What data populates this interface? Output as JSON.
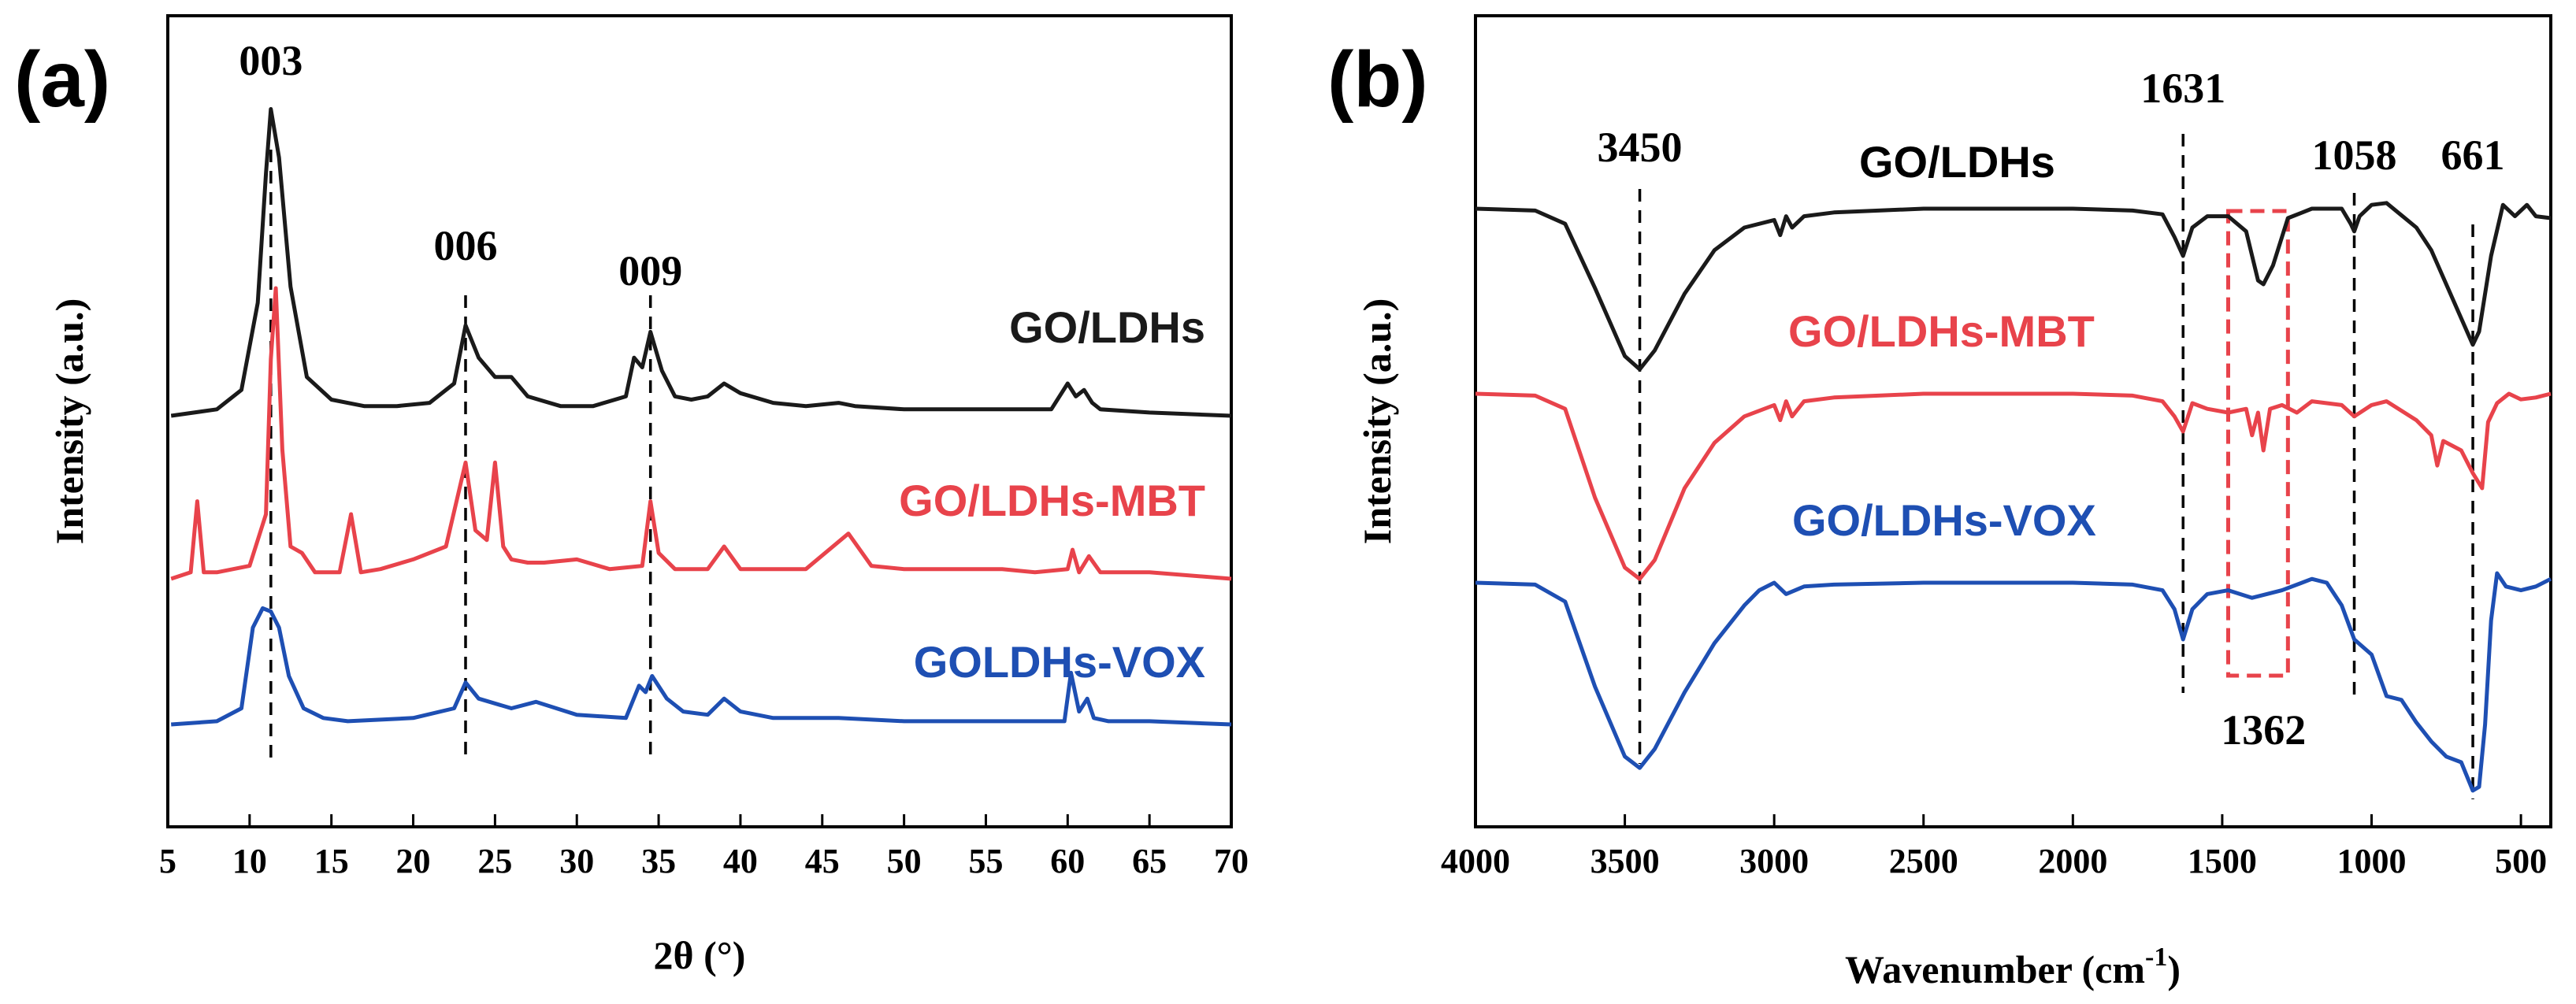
{
  "chart_data": [
    {
      "type": "line",
      "panel": "(a)",
      "xlabel": "2θ (°)",
      "ylabel": "Intensity (a.u.)",
      "xlim": [
        5,
        70
      ],
      "xticks": [
        5,
        10,
        15,
        20,
        25,
        30,
        35,
        40,
        45,
        50,
        55,
        60,
        65,
        70
      ],
      "annotations": [
        {
          "text": "003",
          "x": 11.3
        },
        {
          "text": "006",
          "x": 23.2
        },
        {
          "text": "009",
          "x": 34.5
        }
      ],
      "series": [
        {
          "name": "GO/LDHs",
          "label": "GO/LDHs",
          "color": "#1a1a1a",
          "baseline": 0.0,
          "x": [
            5.2,
            8,
            9.5,
            10.5,
            11.0,
            11.3,
            11.8,
            12.5,
            13.5,
            15,
            17,
            19,
            21,
            22.5,
            23.2,
            24,
            25,
            26,
            27,
            29,
            31,
            33,
            33.5,
            34,
            34.5,
            35.2,
            36,
            37,
            38,
            39,
            40,
            42,
            44,
            46,
            47,
            50,
            55,
            59,
            60,
            60.5,
            61,
            61.5,
            62,
            65,
            70
          ],
          "y": [
            0,
            0.02,
            0.08,
            0.35,
            0.75,
            0.95,
            0.8,
            0.4,
            0.12,
            0.05,
            0.03,
            0.03,
            0.04,
            0.1,
            0.28,
            0.18,
            0.12,
            0.12,
            0.06,
            0.03,
            0.03,
            0.06,
            0.18,
            0.15,
            0.26,
            0.14,
            0.06,
            0.05,
            0.06,
            0.1,
            0.07,
            0.04,
            0.03,
            0.04,
            0.03,
            0.02,
            0.02,
            0.02,
            0.1,
            0.06,
            0.08,
            0.04,
            0.02,
            0.01,
            0
          ]
        },
        {
          "name": "GO/LDHs-MBT",
          "label": "GO/LDHs-MBT",
          "color": "#e8434b",
          "baseline": 0.0,
          "x": [
            5.2,
            6.4,
            6.8,
            7.2,
            8,
            10,
            11,
            11.3,
            11.6,
            12,
            12.5,
            13.2,
            14,
            15.5,
            16.2,
            16.8,
            18,
            20,
            22,
            23.2,
            23.8,
            24.5,
            25,
            25.5,
            26,
            27,
            28,
            30,
            32,
            34,
            34.5,
            35,
            36,
            38,
            39,
            40,
            44,
            46.6,
            48,
            50,
            53,
            56,
            58,
            60,
            60.3,
            60.7,
            61.3,
            62,
            65,
            70
          ],
          "y": [
            0,
            0.02,
            0.24,
            0.02,
            0.02,
            0.04,
            0.2,
            0.68,
            0.9,
            0.4,
            0.1,
            0.08,
            0.02,
            0.02,
            0.2,
            0.02,
            0.03,
            0.06,
            0.1,
            0.36,
            0.15,
            0.12,
            0.36,
            0.1,
            0.06,
            0.05,
            0.05,
            0.06,
            0.03,
            0.04,
            0.24,
            0.08,
            0.03,
            0.03,
            0.1,
            0.03,
            0.03,
            0.14,
            0.04,
            0.03,
            0.03,
            0.03,
            0.02,
            0.03,
            0.09,
            0.02,
            0.07,
            0.02,
            0.02,
            0
          ]
        },
        {
          "name": "GOLDHs-VOX",
          "label": "GOLDHs-VOX",
          "color": "#1e4fb3",
          "baseline": 0.0,
          "x": [
            5.2,
            8,
            9.5,
            10.2,
            10.8,
            11.3,
            11.8,
            12.4,
            13.3,
            14.5,
            16,
            20,
            22.5,
            23.2,
            24,
            26,
            27.5,
            30,
            33,
            33.8,
            34.2,
            34.6,
            35.5,
            36.5,
            38,
            39,
            40,
            42,
            46,
            50,
            55,
            59.8,
            60.2,
            60.7,
            61.2,
            61.6,
            62.5,
            65,
            70
          ],
          "y": [
            0,
            0.01,
            0.05,
            0.3,
            0.36,
            0.35,
            0.3,
            0.15,
            0.05,
            0.02,
            0.01,
            0.02,
            0.05,
            0.13,
            0.08,
            0.05,
            0.07,
            0.03,
            0.02,
            0.12,
            0.1,
            0.15,
            0.08,
            0.04,
            0.03,
            0.08,
            0.04,
            0.02,
            0.02,
            0.01,
            0.01,
            0.01,
            0.16,
            0.04,
            0.08,
            0.02,
            0.01,
            0.01,
            0
          ]
        }
      ]
    },
    {
      "type": "line",
      "panel": "(b)",
      "xlabel": "Wavenumber (cm",
      "xlabel_sup": "-1",
      "xlabel_end": ")",
      "ylabel": "Intensity (a.u.)",
      "xlim": [
        4000,
        400
      ],
      "xticks": [
        4000,
        3500,
        3000,
        2500,
        2000,
        1500,
        1000,
        500
      ],
      "annotations": [
        {
          "text": "3450",
          "x": 3450
        },
        {
          "text": "1631",
          "x": 1631
        },
        {
          "text": "1058",
          "x": 1058
        },
        {
          "text": "661",
          "x": 661
        },
        {
          "text": "1362",
          "x": 1362
        }
      ],
      "highlight_box": {
        "x_from": 1480,
        "x_to": 1280
      },
      "series": [
        {
          "name": "GO/LDHs",
          "label": "GO/LDHs",
          "color": "#1a1a1a",
          "x": [
            4000,
            3800,
            3700,
            3600,
            3500,
            3450,
            3400,
            3300,
            3200,
            3100,
            3000,
            2980,
            2960,
            2940,
            2900,
            2800,
            2500,
            2000,
            1800,
            1700,
            1660,
            1631,
            1600,
            1550,
            1480,
            1420,
            1380,
            1362,
            1330,
            1280,
            1200,
            1100,
            1070,
            1058,
            1040,
            1000,
            950,
            850,
            800,
            750,
            700,
            661,
            640,
            600,
            560,
            520,
            480,
            450,
            400
          ],
          "y": [
            0,
            -0.01,
            -0.08,
            -0.42,
            -0.78,
            -0.85,
            -0.75,
            -0.45,
            -0.22,
            -0.1,
            -0.06,
            -0.14,
            -0.04,
            -0.1,
            -0.04,
            -0.02,
            0,
            0,
            -0.01,
            -0.03,
            -0.15,
            -0.25,
            -0.1,
            -0.04,
            -0.04,
            -0.12,
            -0.38,
            -0.4,
            -0.3,
            -0.05,
            0,
            0.0,
            -0.08,
            -0.12,
            -0.04,
            0.02,
            0.03,
            -0.1,
            -0.22,
            -0.4,
            -0.58,
            -0.72,
            -0.65,
            -0.25,
            0.02,
            -0.04,
            0.02,
            -0.04,
            -0.05
          ]
        },
        {
          "name": "GO/LDHs-MBT",
          "label": "GO/LDHs-MBT",
          "color": "#e8434b",
          "x": [
            4000,
            3800,
            3700,
            3600,
            3500,
            3450,
            3400,
            3300,
            3200,
            3100,
            3000,
            2980,
            2960,
            2940,
            2900,
            2800,
            2500,
            2000,
            1800,
            1700,
            1660,
            1631,
            1600,
            1550,
            1480,
            1420,
            1400,
            1380,
            1362,
            1340,
            1300,
            1250,
            1200,
            1100,
            1058,
            1000,
            950,
            850,
            800,
            780,
            760,
            700,
            661,
            630,
            610,
            580,
            540,
            500,
            450,
            400
          ],
          "y": [
            0,
            -0.01,
            -0.08,
            -0.55,
            -0.92,
            -0.98,
            -0.88,
            -0.5,
            -0.26,
            -0.12,
            -0.06,
            -0.14,
            -0.04,
            -0.12,
            -0.04,
            -0.02,
            0,
            0,
            -0.01,
            -0.04,
            -0.12,
            -0.2,
            -0.05,
            -0.08,
            -0.1,
            -0.08,
            -0.22,
            -0.1,
            -0.3,
            -0.08,
            -0.06,
            -0.1,
            -0.04,
            -0.06,
            -0.12,
            -0.06,
            -0.04,
            -0.14,
            -0.22,
            -0.38,
            -0.25,
            -0.3,
            -0.42,
            -0.5,
            -0.15,
            -0.05,
            0,
            -0.03,
            -0.02,
            0
          ]
        },
        {
          "name": "GO/LDHs-VOX",
          "label": "GO/LDHs-VOX",
          "color": "#1e4fb3",
          "x": [
            4000,
            3800,
            3700,
            3600,
            3500,
            3450,
            3400,
            3300,
            3200,
            3100,
            3050,
            3000,
            2960,
            2900,
            2800,
            2500,
            2000,
            1800,
            1700,
            1660,
            1631,
            1600,
            1550,
            1480,
            1400,
            1300,
            1200,
            1150,
            1100,
            1058,
            1000,
            950,
            900,
            850,
            800,
            750,
            700,
            661,
            640,
            620,
            600,
            580,
            550,
            500,
            450,
            400
          ],
          "y": [
            0,
            -0.01,
            -0.1,
            -0.55,
            -0.92,
            -0.98,
            -0.88,
            -0.58,
            -0.32,
            -0.12,
            -0.04,
            0.0,
            -0.06,
            -0.02,
            -0.01,
            0,
            0,
            -0.01,
            -0.04,
            -0.14,
            -0.3,
            -0.14,
            -0.06,
            -0.04,
            -0.08,
            -0.04,
            0.02,
            0.0,
            -0.12,
            -0.3,
            -0.38,
            -0.6,
            -0.62,
            -0.74,
            -0.84,
            -0.92,
            -0.95,
            -1.1,
            -1.08,
            -0.75,
            -0.2,
            0.05,
            -0.02,
            -0.04,
            -0.02,
            0.02
          ]
        }
      ]
    }
  ]
}
